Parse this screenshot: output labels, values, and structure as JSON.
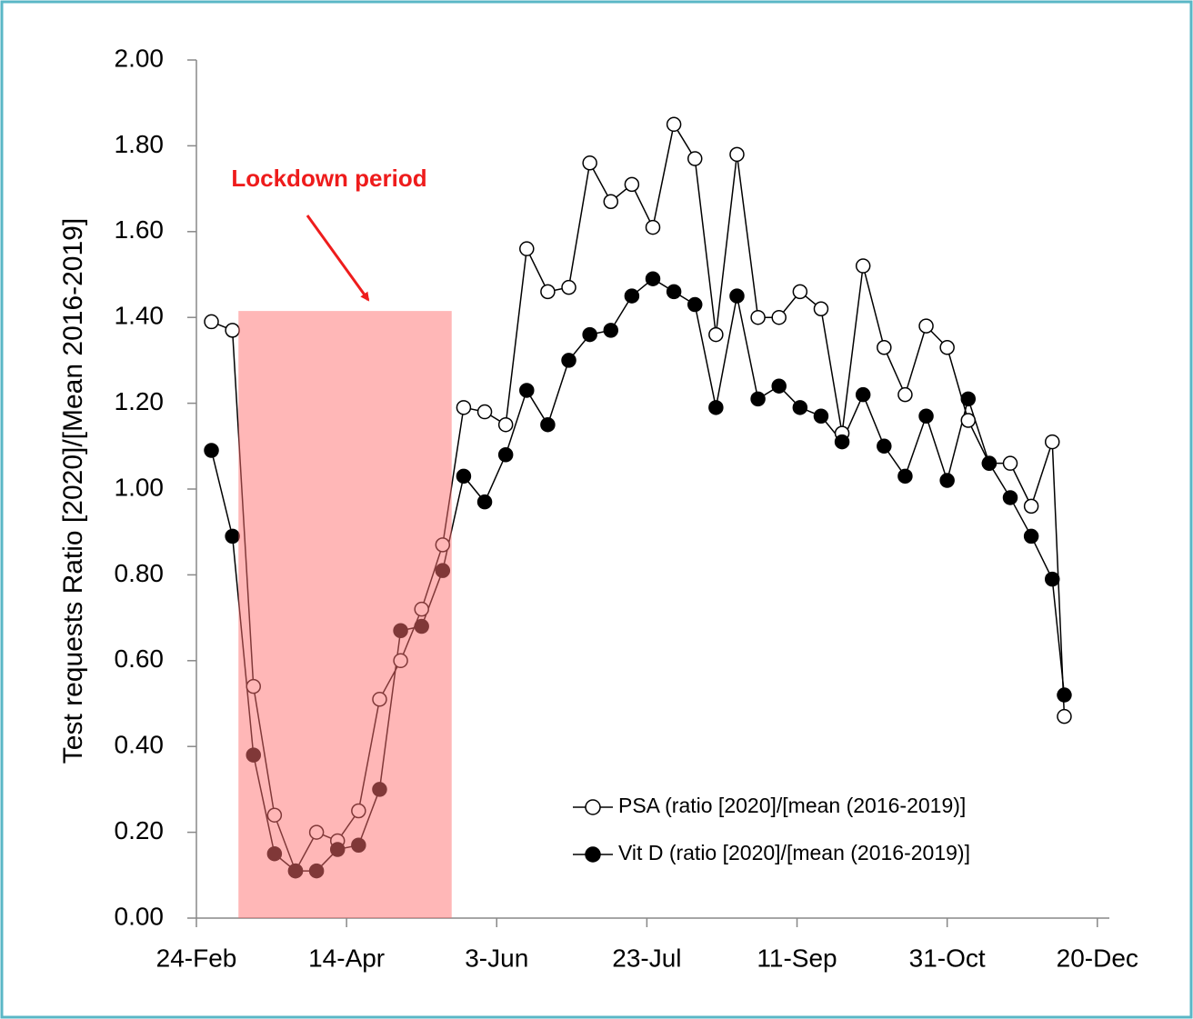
{
  "chart_data": {
    "type": "line",
    "y_label": "Test requests Ratio [2020]/[Mean 2016-2019]",
    "annotation": {
      "text": "Lockdown period",
      "color": "#ee1c1c"
    },
    "shade": {
      "x": [
        14,
        85
      ],
      "y": [
        0,
        1.415
      ],
      "color": "#ff6f6f"
    },
    "x": [
      5,
      12,
      19,
      26,
      33,
      40,
      47,
      54,
      61,
      68,
      75,
      82,
      89,
      96,
      103,
      110,
      117,
      124,
      131,
      138,
      145,
      152,
      159,
      166,
      173,
      180,
      187,
      194,
      201,
      208,
      215,
      222,
      229,
      236,
      243,
      250,
      257,
      264,
      271,
      278,
      285,
      289
    ],
    "xlim": [
      0,
      304
    ],
    "xticks": [
      {
        "value": 0,
        "label": "24-Feb"
      },
      {
        "value": 50,
        "label": "14-Apr"
      },
      {
        "value": 100,
        "label": "3-Jun"
      },
      {
        "value": 150,
        "label": "23-Jul"
      },
      {
        "value": 200,
        "label": "11-Sep"
      },
      {
        "value": 250,
        "label": "31-Oct"
      },
      {
        "value": 300,
        "label": "20-Dec"
      }
    ],
    "ylim": [
      0,
      2
    ],
    "yticks": [
      {
        "value": 0,
        "label": "0.00"
      },
      {
        "value": 0.2,
        "label": "0.20"
      },
      {
        "value": 0.4,
        "label": "0.40"
      },
      {
        "value": 0.6,
        "label": "0.60"
      },
      {
        "value": 0.8,
        "label": "0.80"
      },
      {
        "value": 1,
        "label": "1.00"
      },
      {
        "value": 1.2,
        "label": "1.20"
      },
      {
        "value": 1.4,
        "label": "1.40"
      },
      {
        "value": 1.6,
        "label": "1.60"
      },
      {
        "value": 1.8,
        "label": "1.80"
      },
      {
        "value": 2,
        "label": "2.00"
      }
    ],
    "series": [
      {
        "name": "PSA (ratio [2020]/[mean (2016-2019)]",
        "color": "#ffffff",
        "values": [
          1.39,
          1.37,
          0.54,
          0.24,
          0.11,
          0.2,
          0.18,
          0.25,
          0.51,
          0.6,
          0.72,
          0.87,
          1.19,
          1.18,
          1.15,
          1.56,
          1.46,
          1.47,
          1.76,
          1.67,
          1.71,
          1.61,
          1.85,
          1.77,
          1.36,
          1.78,
          1.4,
          1.4,
          1.46,
          1.42,
          1.13,
          1.52,
          1.33,
          1.22,
          1.38,
          1.33,
          1.16,
          1.06,
          1.06,
          0.96,
          1.11,
          0.47
        ]
      },
      {
        "name": "Vit D (ratio [2020]/[mean (2016-2019)]",
        "color": "#000000",
        "values": [
          1.09,
          0.89,
          0.38,
          0.15,
          0.11,
          0.11,
          0.16,
          0.17,
          0.3,
          0.67,
          0.68,
          0.81,
          1.03,
          0.97,
          1.08,
          1.23,
          1.15,
          1.3,
          1.36,
          1.37,
          1.45,
          1.49,
          1.46,
          1.43,
          1.19,
          1.45,
          1.21,
          1.24,
          1.19,
          1.17,
          1.11,
          1.22,
          1.1,
          1.03,
          1.17,
          1.02,
          1.21,
          1.06,
          0.98,
          0.89,
          0.79,
          0.52
        ]
      }
    ]
  }
}
